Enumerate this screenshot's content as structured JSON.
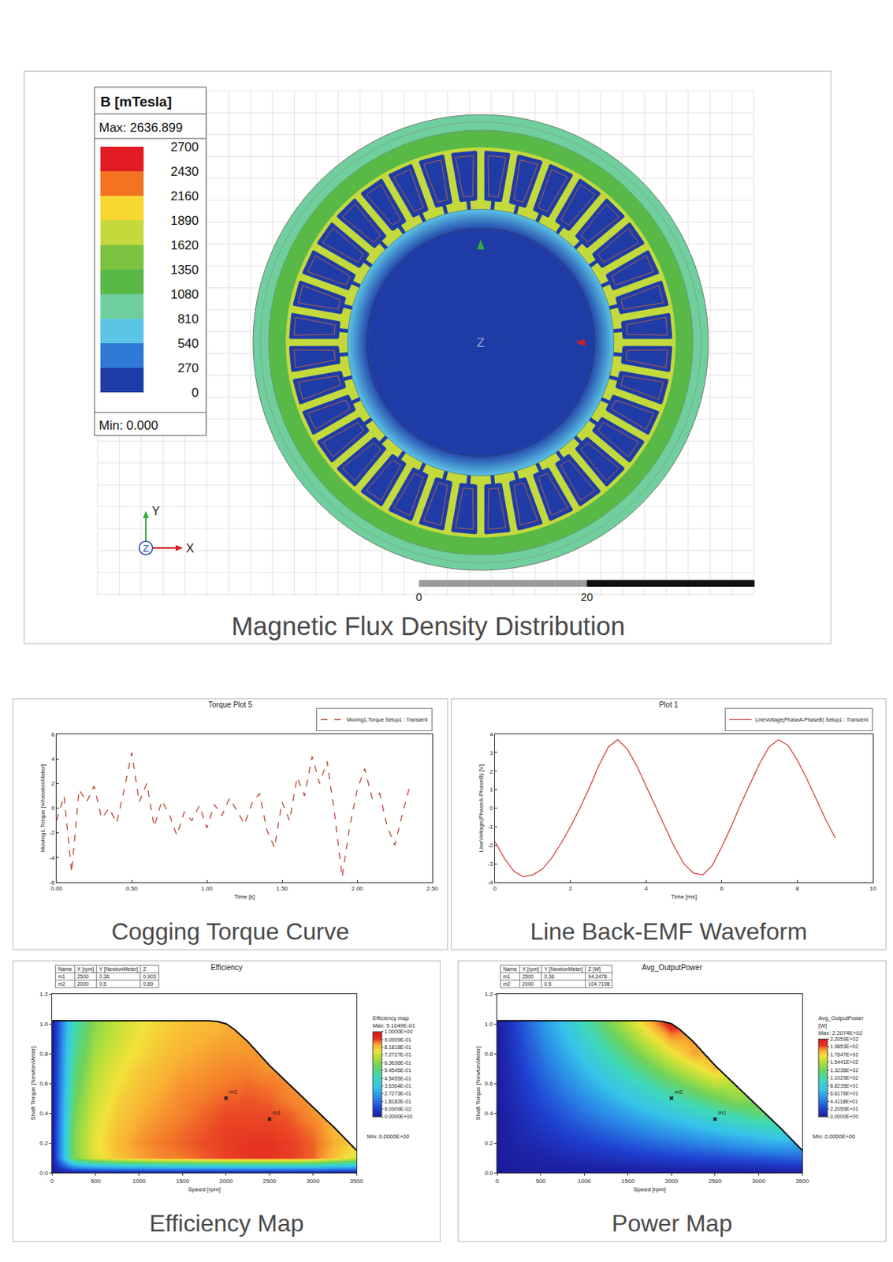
{
  "flux_plot": {
    "legend_title": "B [mTesla]",
    "max_text": "Max: 2636.899",
    "min_text": "Min: 0.000",
    "levels": [
      2700,
      2430,
      2160,
      1890,
      1620,
      1350,
      1080,
      810,
      540,
      270,
      0
    ],
    "colors": [
      "#e31b23",
      "#f37321",
      "#f7d730",
      "#c3d93c",
      "#7ec242",
      "#58b947",
      "#6fcf9d",
      "#5bc5e6",
      "#2f7ad6",
      "#1f3ca6"
    ],
    "regions": {
      "stator_outer": 950,
      "stator_yoke": 1250,
      "stator_teeth": 1750,
      "slots": 60,
      "rotor_surface": 650,
      "rotor_core": 120
    },
    "slots": 36,
    "scale_bar": [
      0,
      20
    ],
    "axes": [
      "X",
      "Y",
      "Z"
    ],
    "center_label": "Z",
    "caption": "Magnetic Flux Density Distribution"
  },
  "chart_data": [
    {
      "type": "line",
      "title": "Torque Plot 5",
      "caption": "Cogging Torque Curve",
      "x_label": "Time [s]",
      "y_label": "Moving1.Torque [mNewtonMeter]",
      "x": [
        0,
        0.05,
        0.1,
        0.15,
        0.2,
        0.25,
        0.3,
        0.35,
        0.4,
        0.45,
        0.5,
        0.55,
        0.6,
        0.65,
        0.7,
        0.75,
        0.8,
        0.85,
        0.9,
        0.95,
        1,
        1.05,
        1.1,
        1.15,
        1.2,
        1.25,
        1.3,
        1.35,
        1.4,
        1.45,
        1.5,
        1.55,
        1.6,
        1.65,
        1.7,
        1.75,
        1.8,
        1.85,
        1.9,
        1.95,
        2,
        2.05,
        2.1,
        2.15,
        2.2,
        2.25,
        2.3,
        2.35
      ],
      "series": [
        {
          "name": "Moving1.Torque Setup1 : Transient",
          "color": "#b5452f",
          "line_style": "dash",
          "values": [
            -1.0,
            1.0,
            -5.2,
            1.5,
            0.5,
            1.8,
            -0.8,
            0.0,
            -1.2,
            1.5,
            4.5,
            0.5,
            2.0,
            -1.5,
            0.6,
            -0.5,
            -2.2,
            -0.3,
            -1.0,
            0.2,
            -1.6,
            0.3,
            -0.6,
            0.8,
            -0.2,
            -1.3,
            0.4,
            1.2,
            -1.8,
            -3.2,
            0.5,
            -1.0,
            2.5,
            1.0,
            4.2,
            2.0,
            3.8,
            -0.5,
            -5.6,
            -1.5,
            1.5,
            3.2,
            0.8,
            1.2,
            -1.5,
            -3.0,
            -0.5,
            1.8
          ]
        }
      ],
      "xlim": [
        0,
        2.5
      ],
      "xticks": [
        {
          "value": 0,
          "label": "0.00"
        },
        {
          "value": 0.5,
          "label": "0.50"
        },
        {
          "value": 1,
          "label": "1.00"
        },
        {
          "value": 1.5,
          "label": "1.50"
        },
        {
          "value": 2,
          "label": "2.00"
        },
        {
          "value": 2.5,
          "label": "2.50"
        }
      ],
      "ylim": [
        -6,
        6
      ],
      "yticks": [
        -6,
        -4,
        -2,
        0,
        2,
        4,
        6
      ],
      "grid": false,
      "legend": "top right"
    },
    {
      "type": "line",
      "title": "Plot 1",
      "caption": "Line Back-EMF Waveform",
      "x_label": "Time [ms]",
      "y_label": "LineVoltage(PhaseA-PhaseB) [V]",
      "x": [
        0,
        0.25,
        0.5,
        0.75,
        1,
        1.25,
        1.5,
        1.75,
        2,
        2.25,
        2.5,
        2.75,
        3,
        3.25,
        3.5,
        3.75,
        4,
        4.25,
        4.5,
        4.75,
        5,
        5.25,
        5.5,
        5.75,
        6,
        6.25,
        6.5,
        6.75,
        7,
        7.25,
        7.5,
        7.75,
        8,
        8.25,
        8.5,
        8.75,
        9
      ],
      "series": [
        {
          "name": "LineVoltage(PhaseA-PhaseB) Setup1 : Transient",
          "color": "#d0433a",
          "line_style": "solid",
          "values": [
            -1.8,
            -2.7,
            -3.4,
            -3.7,
            -3.6,
            -3.3,
            -2.7,
            -1.9,
            -1.0,
            0.0,
            1.1,
            2.3,
            3.3,
            3.7,
            3.2,
            2.3,
            1.2,
            0.1,
            -1.0,
            -2.1,
            -3.0,
            -3.5,
            -3.6,
            -3.1,
            -2.1,
            -1.0,
            0.2,
            1.3,
            2.4,
            3.3,
            3.7,
            3.4,
            2.6,
            1.6,
            0.5,
            -0.6,
            -1.6
          ]
        }
      ],
      "xlim": [
        0,
        10
      ],
      "xticks": [
        0,
        2,
        4,
        6,
        8,
        10
      ],
      "ylim": [
        -4,
        4
      ],
      "yticks": [
        -4,
        -3,
        -2,
        -1,
        0,
        1,
        2,
        3,
        4
      ],
      "grid": false,
      "legend": "top right"
    },
    {
      "type": "heatmap",
      "title": "Efficiency",
      "caption": "Efficiency Map",
      "x_label": "Speed [rpm]",
      "y_label": "Shaft Torque [NewtonMeter]",
      "x": [
        0,
        250,
        500,
        750,
        1000,
        1250,
        1500,
        1750,
        2000,
        2250,
        2500,
        2750,
        3000,
        3250,
        3500
      ],
      "y": [
        0,
        0.1,
        0.2,
        0.3,
        0.4,
        0.5,
        0.6,
        0.7,
        0.8,
        0.9,
        1
      ],
      "z": [
        [
          0,
          0,
          0,
          0,
          0,
          0,
          0,
          0,
          0,
          0,
          0,
          0,
          0,
          0,
          0
        ],
        [
          0,
          0.62,
          0.76,
          0.82,
          0.85,
          0.87,
          0.88,
          0.895,
          0.905,
          0.91,
          0.91,
          0.905,
          0.89,
          0.82,
          0.74
        ],
        [
          0,
          0.63,
          0.77,
          0.83,
          0.86,
          0.88,
          0.89,
          0.9,
          0.905,
          0.91,
          0.91,
          0.905,
          0.89,
          0.84,
          null
        ],
        [
          0,
          0.62,
          0.76,
          0.82,
          0.85,
          0.87,
          0.885,
          0.895,
          0.905,
          0.905,
          0.905,
          0.9,
          0.88,
          0.83,
          null
        ],
        [
          0,
          0.6,
          0.75,
          0.81,
          0.84,
          0.86,
          0.875,
          0.89,
          0.9,
          0.9,
          0.9,
          0.89,
          0.86,
          null,
          null
        ],
        [
          0,
          0.58,
          0.73,
          0.8,
          0.83,
          0.85,
          0.87,
          0.88,
          0.89,
          0.895,
          0.89,
          0.87,
          null,
          null,
          null
        ],
        [
          0,
          0.56,
          0.72,
          0.78,
          0.82,
          0.84,
          0.86,
          0.87,
          0.88,
          0.885,
          0.88,
          null,
          null,
          null,
          null
        ],
        [
          0,
          0.54,
          0.7,
          0.77,
          0.81,
          0.83,
          0.85,
          0.86,
          0.87,
          0.875,
          0.86,
          null,
          null,
          null,
          null
        ],
        [
          0,
          0.52,
          0.68,
          0.75,
          0.79,
          0.82,
          0.84,
          0.85,
          0.86,
          0.86,
          null,
          null,
          null,
          null,
          null
        ],
        [
          0,
          0.5,
          0.66,
          0.73,
          0.78,
          0.81,
          0.83,
          0.84,
          0.85,
          null,
          null,
          null,
          null,
          null,
          null
        ],
        [
          0,
          0.48,
          0.64,
          0.72,
          0.77,
          0.8,
          0.82,
          0.83,
          0.84,
          null,
          null,
          null,
          null,
          null,
          null
        ]
      ],
      "envelope": {
        "x": [
          0,
          1800,
          1900,
          2000,
          2100,
          2250,
          2500,
          2750,
          3000,
          3250,
          3500
        ],
        "y": [
          1.02,
          1.02,
          1.015,
          1.0,
          0.96,
          0.88,
          0.72,
          0.58,
          0.44,
          0.3,
          0.15
        ]
      },
      "colorbar": {
        "title": "Efficiency map",
        "max_label": "Max: 9.1049E-01",
        "min_label": "Min: 0.0000E+00",
        "range": [
          0,
          1
        ],
        "ticks": [
          {
            "value": 0,
            "label": "0.0000E+00"
          },
          {
            "value": 0.090909,
            "label": "9.0909E-02"
          },
          {
            "value": 0.181818,
            "label": "1.8182E-01"
          },
          {
            "value": 0.272727,
            "label": "2.7273E-01"
          },
          {
            "value": 0.363636,
            "label": "3.6364E-01"
          },
          {
            "value": 0.454545,
            "label": "4.5455E-01"
          },
          {
            "value": 0.545455,
            "label": "5.4545E-01"
          },
          {
            "value": 0.636364,
            "label": "6.3636E-01"
          },
          {
            "value": 0.727273,
            "label": "7.2727E-01"
          },
          {
            "value": 0.818182,
            "label": "8.1818E-01"
          },
          {
            "value": 0.909091,
            "label": "9.0909E-01"
          },
          {
            "value": 1,
            "label": "1.0000E+00"
          }
        ]
      },
      "markers": {
        "columns": [
          "Name",
          "X [rpm]",
          "Y [NewtonMeter]",
          "Z"
        ],
        "rows": [
          [
            "m1",
            2500,
            0.36,
            0.903
          ],
          [
            "m2",
            2000,
            0.5,
            0.89
          ]
        ]
      },
      "xlim": [
        0,
        3500
      ],
      "xticks": [
        0,
        500,
        1000,
        1500,
        2000,
        2500,
        3000,
        3500
      ],
      "ylim": [
        0,
        1.2
      ],
      "yticks": [
        {
          "value": 0,
          "label": "0.0"
        },
        0.2,
        0.4,
        0.6,
        0.8,
        {
          "value": 1,
          "label": "1.0"
        },
        1.2
      ],
      "grid": false
    },
    {
      "type": "heatmap",
      "title": "Avg_OutputPower",
      "caption": "Power Map",
      "x_label": "Speed [rpm]",
      "y_label": "Shaft Torque [NewtonMeter]",
      "x": [
        0,
        250,
        500,
        750,
        1000,
        1250,
        1500,
        1750,
        2000,
        2250,
        2500,
        2750,
        3000,
        3250,
        3500
      ],
      "y": [
        0,
        0.1,
        0.2,
        0.3,
        0.4,
        0.5,
        0.6,
        0.7,
        0.8,
        0.9,
        1
      ],
      "z": [
        [
          0,
          0,
          0,
          0,
          0,
          0,
          0,
          0,
          0,
          0,
          0,
          0,
          0,
          0,
          0
        ],
        [
          0,
          3,
          5,
          8,
          10,
          13,
          16,
          18,
          21,
          24,
          26,
          29,
          31,
          34,
          37
        ],
        [
          0,
          5,
          10,
          16,
          21,
          26,
          31,
          37,
          42,
          47,
          52,
          58,
          63,
          68,
          null
        ],
        [
          0,
          8,
          16,
          24,
          31,
          39,
          47,
          55,
          63,
          71,
          79,
          86,
          94,
          102,
          null
        ],
        [
          0,
          10,
          21,
          31,
          42,
          52,
          63,
          73,
          84,
          94,
          105,
          115,
          126,
          null,
          null
        ],
        [
          0,
          13,
          26,
          39,
          52,
          65,
          79,
          92,
          105,
          118,
          131,
          144,
          null,
          null,
          null
        ],
        [
          0,
          16,
          31,
          47,
          63,
          79,
          94,
          110,
          126,
          141,
          157,
          null,
          null,
          null,
          null
        ],
        [
          0,
          18,
          37,
          55,
          73,
          92,
          110,
          128,
          147,
          165,
          183,
          null,
          null,
          null,
          null
        ],
        [
          0,
          21,
          42,
          63,
          84,
          105,
          126,
          147,
          168,
          188,
          null,
          null,
          null,
          null,
          null
        ],
        [
          0,
          24,
          47,
          71,
          94,
          118,
          141,
          165,
          188,
          null,
          null,
          null,
          null,
          null,
          null
        ],
        [
          0,
          26,
          52,
          79,
          105,
          131,
          157,
          183,
          209,
          null,
          null,
          null,
          null,
          null,
          null
        ]
      ],
      "envelope": {
        "x": [
          0,
          1800,
          1900,
          2000,
          2100,
          2250,
          2500,
          2750,
          3000,
          3250,
          3500
        ],
        "y": [
          1.02,
          1.02,
          1.015,
          1.0,
          0.96,
          0.88,
          0.72,
          0.58,
          0.44,
          0.3,
          0.15
        ]
      },
      "colorbar": {
        "title": "Avg_OutputPower [W]",
        "max_label": "Max: 2.2074E+02",
        "min_label": "Min: 0.0000E+00",
        "range": [
          0,
          220.588
        ],
        "ticks": [
          {
            "value": 0,
            "label": "0.0000E+00"
          },
          {
            "value": 22.0588,
            "label": "2.2059E+01"
          },
          {
            "value": 44.1176,
            "label": "4.4118E+01"
          },
          {
            "value": 66.1765,
            "label": "6.6176E+01"
          },
          {
            "value": 88.2353,
            "label": "8.8235E+01"
          },
          {
            "value": 110.294,
            "label": "1.1029E+02"
          },
          {
            "value": 132.353,
            "label": "1.3235E+02"
          },
          {
            "value": 154.412,
            "label": "1.5441E+02"
          },
          {
            "value": 176.471,
            "label": "1.7647E+02"
          },
          {
            "value": 198.529,
            "label": "1.9853E+02"
          },
          {
            "value": 220.588,
            "label": "2.2059E+02"
          }
        ]
      },
      "markers": {
        "columns": [
          "Name",
          "X [rpm]",
          "Y [NewtonMeter]",
          "Z [W]"
        ],
        "rows": [
          [
            "m1",
            2500,
            0.36,
            94.2478
          ],
          [
            "m2",
            2000,
            0.5,
            104.7198
          ]
        ]
      },
      "xlim": [
        0,
        3500
      ],
      "xticks": [
        0,
        500,
        1000,
        1500,
        2000,
        2500,
        3000,
        3500
      ],
      "ylim": [
        0,
        1.2
      ],
      "yticks": [
        {
          "value": 0,
          "label": "0.0"
        },
        0.2,
        0.4,
        0.6,
        0.8,
        {
          "value": 1,
          "label": "1.0"
        },
        1.2
      ],
      "grid": false
    }
  ]
}
